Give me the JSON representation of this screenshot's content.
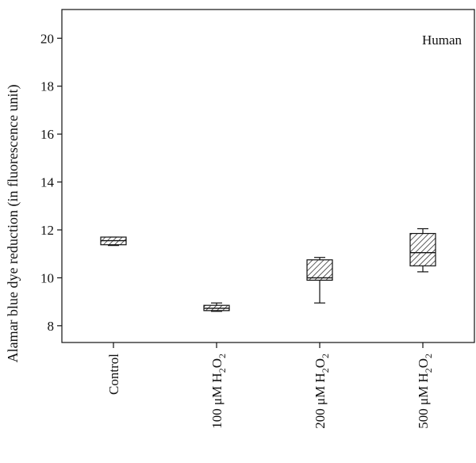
{
  "chart_data": {
    "type": "box",
    "ylabel": "Alamar blue dye reduction (in fluorescence unit)",
    "annotation": "Human",
    "ylim": [
      7.3,
      21.2
    ],
    "yticks": [
      8,
      10,
      12,
      14,
      16,
      18,
      20
    ],
    "categories": [
      {
        "label": "Control",
        "sub": ""
      },
      {
        "label": "100 μM H",
        "sub": "2",
        "mid": "O",
        "sub2": "2"
      },
      {
        "label": "200 μM H",
        "sub": "2",
        "mid": "O",
        "sub2": "2"
      },
      {
        "label": "500 μM H",
        "sub": "2",
        "mid": "O",
        "sub2": "2"
      }
    ],
    "boxes": [
      {
        "whisker_low": 11.35,
        "q1": 11.38,
        "median": 11.55,
        "q3": 11.7,
        "whisker_high": 11.7
      },
      {
        "whisker_low": 8.6,
        "q1": 8.63,
        "median": 8.73,
        "q3": 8.85,
        "whisker_high": 8.95
      },
      {
        "whisker_low": 8.95,
        "q1": 9.9,
        "median": 10.0,
        "q3": 10.75,
        "whisker_high": 10.85
      },
      {
        "whisker_low": 10.25,
        "q1": 10.5,
        "median": 11.05,
        "q3": 11.85,
        "whisker_high": 12.05
      }
    ],
    "hatch": "diagonal",
    "grid": false
  }
}
